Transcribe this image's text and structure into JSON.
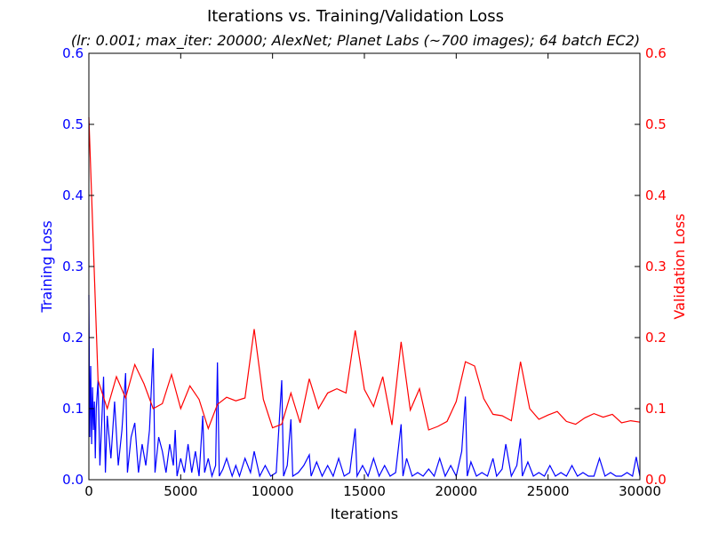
{
  "chart_data": {
    "type": "line",
    "title": "Iterations vs. Training/Validation Loss",
    "subtitle": "(lr: 0.001; max_iter: 20000; AlexNet; Planet Labs (~700 images); 64 batch EC2)",
    "xlabel": "Iterations",
    "ylabel_left": "Training Loss",
    "ylabel_right": "Validation Loss",
    "xlim": [
      0,
      30000
    ],
    "ylim_left": [
      0,
      0.6
    ],
    "ylim_right": [
      0,
      0.6
    ],
    "x_ticks": [
      "0",
      "5000",
      "10000",
      "15000",
      "20000",
      "25000",
      "30000"
    ],
    "y_ticks_left": [
      "0.0",
      "0.1",
      "0.2",
      "0.3",
      "0.4",
      "0.5",
      "0.6"
    ],
    "y_ticks_right": [
      "0.0",
      "0.1",
      "0.2",
      "0.3",
      "0.4",
      "0.5",
      "0.6"
    ],
    "grid": false,
    "colors": {
      "training": "#0000ff",
      "validation": "#ff0000"
    },
    "series": [
      {
        "axis": "left",
        "x": [
          0,
          50,
          100,
          150,
          200,
          250,
          300,
          350,
          400,
          500,
          600,
          700,
          800,
          900,
          1000,
          1200,
          1400,
          1600,
          1800,
          2000,
          2100,
          2300,
          2500,
          2700,
          2900,
          3100,
          3300,
          3500,
          3600,
          3800,
          4000,
          4200,
          4400,
          4600,
          4700,
          4800,
          5000,
          5200,
          5400,
          5600,
          5800,
          6000,
          6200,
          6300,
          6500,
          6700,
          6900,
          7000,
          7100,
          7300,
          7500,
          7800,
          8000,
          8200,
          8500,
          8800,
          9000,
          9300,
          9600,
          9900,
          10200,
          10500,
          10600,
          10800,
          11000,
          11100,
          11400,
          11700,
          12000,
          12100,
          12400,
          12700,
          13000,
          13300,
          13600,
          13900,
          14200,
          14500,
          14600,
          14900,
          15200,
          15500,
          15800,
          16100,
          16400,
          16700,
          17000,
          17100,
          17300,
          17600,
          17900,
          18200,
          18500,
          18800,
          19100,
          19400,
          19700,
          20000,
          20300,
          20500,
          20600,
          20800,
          21100,
          21400,
          21700,
          22000,
          22200,
          22500,
          22700,
          23000,
          23300,
          23500,
          23600,
          23900,
          24200,
          24500,
          24800,
          25100,
          25400,
          25700,
          26000,
          26300,
          26600,
          26900,
          27200,
          27500,
          27800,
          28100,
          28400,
          28700,
          29000,
          29300,
          29600,
          29800,
          30000
        ],
        "values": [
          0.26,
          0.06,
          0.16,
          0.05,
          0.13,
          0.07,
          0.11,
          0.03,
          0.1,
          0.14,
          0.02,
          0.08,
          0.145,
          0.01,
          0.09,
          0.03,
          0.11,
          0.02,
          0.07,
          0.15,
          0.01,
          0.06,
          0.08,
          0.01,
          0.05,
          0.02,
          0.07,
          0.185,
          0.01,
          0.06,
          0.04,
          0.01,
          0.05,
          0.02,
          0.07,
          0.005,
          0.03,
          0.01,
          0.05,
          0.01,
          0.04,
          0.005,
          0.09,
          0.01,
          0.03,
          0.005,
          0.02,
          0.165,
          0.005,
          0.015,
          0.03,
          0.005,
          0.02,
          0.005,
          0.03,
          0.01,
          0.04,
          0.005,
          0.02,
          0.005,
          0.01,
          0.14,
          0.005,
          0.02,
          0.085,
          0.005,
          0.01,
          0.02,
          0.035,
          0.005,
          0.025,
          0.005,
          0.02,
          0.005,
          0.03,
          0.005,
          0.01,
          0.072,
          0.005,
          0.02,
          0.005,
          0.03,
          0.005,
          0.02,
          0.005,
          0.01,
          0.078,
          0.005,
          0.03,
          0.005,
          0.01,
          0.005,
          0.015,
          0.005,
          0.03,
          0.005,
          0.02,
          0.005,
          0.04,
          0.117,
          0.005,
          0.025,
          0.005,
          0.01,
          0.005,
          0.03,
          0.005,
          0.015,
          0.05,
          0.005,
          0.02,
          0.058,
          0.005,
          0.025,
          0.005,
          0.01,
          0.005,
          0.02,
          0.005,
          0.01,
          0.005,
          0.02,
          0.005,
          0.01,
          0.005,
          0.005,
          0.03,
          0.005,
          0.01,
          0.005,
          0.005,
          0.01,
          0.005,
          0.032,
          0.005
        ]
      },
      {
        "axis": "right",
        "x": [
          0,
          500,
          1000,
          1500,
          2000,
          2500,
          3000,
          3500,
          4000,
          4500,
          5000,
          5500,
          6000,
          6500,
          7000,
          7500,
          8000,
          8500,
          9000,
          9500,
          10000,
          10500,
          11000,
          11500,
          12000,
          12500,
          13000,
          13500,
          14000,
          14500,
          15000,
          15500,
          16000,
          16500,
          17000,
          17500,
          18000,
          18500,
          19000,
          19500,
          20000,
          20500,
          21000,
          21500,
          22000,
          22500,
          23000,
          23500,
          24000,
          24500,
          25000,
          25500,
          26000,
          26500,
          27000,
          27500,
          28000,
          28500,
          29000,
          29500,
          30000
        ],
        "values": [
          0.51,
          0.14,
          0.1,
          0.145,
          0.115,
          0.162,
          0.135,
          0.1,
          0.107,
          0.148,
          0.1,
          0.132,
          0.113,
          0.072,
          0.106,
          0.116,
          0.111,
          0.115,
          0.212,
          0.113,
          0.073,
          0.078,
          0.122,
          0.08,
          0.142,
          0.1,
          0.122,
          0.128,
          0.122,
          0.21,
          0.127,
          0.103,
          0.145,
          0.077,
          0.194,
          0.098,
          0.128,
          0.07,
          0.075,
          0.082,
          0.11,
          0.166,
          0.16,
          0.114,
          0.092,
          0.09,
          0.083,
          0.166,
          0.1,
          0.085,
          0.091,
          0.096,
          0.082,
          0.078,
          0.087,
          0.093,
          0.088,
          0.092,
          0.08,
          0.083,
          0.081
        ]
      }
    ]
  }
}
